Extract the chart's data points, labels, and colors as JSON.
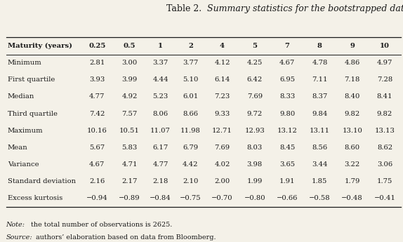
{
  "title_prefix": "Table 2.",
  "title_italic": "  Summary statistics for the bootstrapped data set",
  "columns": [
    "Maturity (years)",
    "0.25",
    "0.5",
    "1",
    "2",
    "4",
    "5",
    "7",
    "8",
    "9",
    "10"
  ],
  "rows": [
    [
      "Minimum",
      "2.81",
      "3.00",
      "3.37",
      "3.77",
      "4.12",
      "4.25",
      "4.67",
      "4.78",
      "4.86",
      "4.97"
    ],
    [
      "First quartile",
      "3.93",
      "3.99",
      "4.44",
      "5.10",
      "6.14",
      "6.42",
      "6.95",
      "7.11",
      "7.18",
      "7.28"
    ],
    [
      "Median",
      "4.77",
      "4.92",
      "5.23",
      "6.01",
      "7.23",
      "7.69",
      "8.33",
      "8.37",
      "8.40",
      "8.41"
    ],
    [
      "Third quartile",
      "7.42",
      "7.57",
      "8.06",
      "8.66",
      "9.33",
      "9.72",
      "9.80",
      "9.84",
      "9.82",
      "9.82"
    ],
    [
      "Maximum",
      "10.16",
      "10.51",
      "11.07",
      "11.98",
      "12.71",
      "12.93",
      "13.12",
      "13.11",
      "13.10",
      "13.13"
    ],
    [
      "Mean",
      "5.67",
      "5.83",
      "6.17",
      "6.79",
      "7.69",
      "8.03",
      "8.45",
      "8.56",
      "8.60",
      "8.62"
    ],
    [
      "Variance",
      "4.67",
      "4.71",
      "4.77",
      "4.42",
      "4.02",
      "3.98",
      "3.65",
      "3.44",
      "3.22",
      "3.06"
    ],
    [
      "Standard deviation",
      "2.16",
      "2.17",
      "2.18",
      "2.10",
      "2.00",
      "1.99",
      "1.91",
      "1.85",
      "1.79",
      "1.75"
    ],
    [
      "Excess kurtosis",
      "−0.94",
      "−0.89",
      "−0.84",
      "−0.75",
      "−0.70",
      "−0.80",
      "−0.66",
      "−0.58",
      "−0.48",
      "−0.41"
    ]
  ],
  "note_italic": "Note:",
  "note_rest": " the total number of observations is 2625.",
  "source_italic": "Source:",
  "source_rest": " authors’ elaboration based on data from Bloomberg.",
  "bg_color": "#f4f1e8",
  "text_color": "#1a1a1a",
  "line_color": "#1a1a1a",
  "font_size": 7.2,
  "title_font_size": 9.0,
  "col_widths_rel": [
    2.3,
    1.0,
    1.0,
    0.9,
    0.95,
    1.0,
    1.0,
    1.0,
    1.0,
    1.0,
    1.0
  ]
}
